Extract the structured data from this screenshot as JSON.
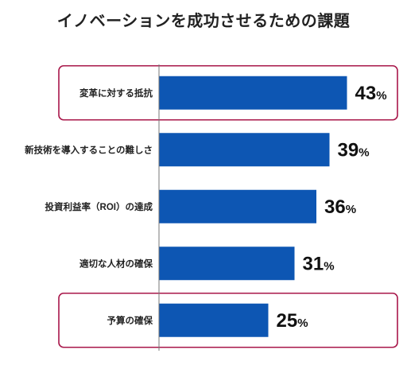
{
  "chart_data": {
    "type": "bar",
    "orientation": "horizontal",
    "title": "イノベーションを成功させるための課題",
    "categories": [
      "変革に対する抵抗",
      "新技術を導入することの難しさ",
      "投資利益率（ROI）の達成",
      "適切な人材の確保",
      "予算の確保"
    ],
    "values": [
      43,
      39,
      36,
      31,
      25
    ],
    "value_suffix": "%",
    "highlighted": [
      "変革に対する抵抗",
      "予算の確保"
    ],
    "xlim": [
      0,
      60
    ],
    "bar_color": "#0d56b3",
    "highlight_color": "#a8174a"
  }
}
